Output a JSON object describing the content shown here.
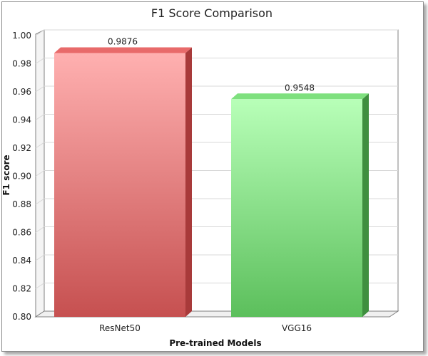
{
  "chart_data": {
    "type": "bar",
    "title": "F1 Score Comparison",
    "xlabel": "Pre-trained Models",
    "ylabel": "F1 score",
    "categories": [
      "ResNet50",
      "VGG16"
    ],
    "values": [
      0.9876,
      0.9548
    ],
    "value_labels": [
      "0.9876",
      "0.9548"
    ],
    "ylim": [
      0.8,
      1.0
    ],
    "yticks": [
      "0.80",
      "0.82",
      "0.84",
      "0.86",
      "0.88",
      "0.90",
      "0.92",
      "0.94",
      "0.96",
      "0.98",
      "1.00"
    ],
    "grid": true,
    "legend": "none",
    "colors": {
      "ResNet50": {
        "top": "#ffb0b0",
        "bottom": "#c65050",
        "side": "#a83a3a",
        "cap": "#e86a6a"
      },
      "VGG16": {
        "top": "#b8ffb8",
        "bottom": "#5cbf5c",
        "side": "#3f8f3f",
        "cap": "#7ee07e"
      }
    }
  }
}
